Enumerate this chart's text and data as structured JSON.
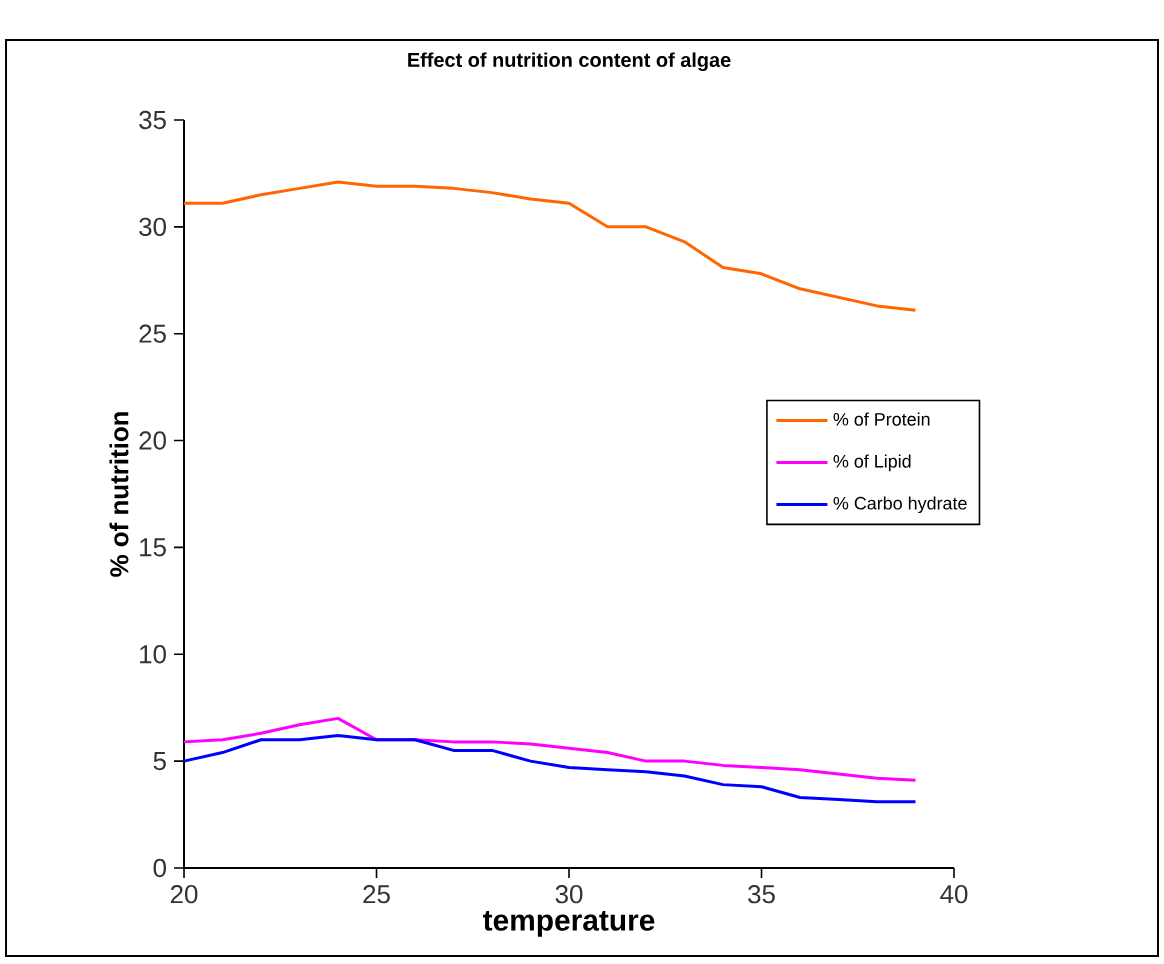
{
  "chart_data": {
    "type": "line",
    "title": "Effect of nutrition content of algae",
    "xlabel": "temperature",
    "ylabel": "% of nutrition",
    "x": [
      20,
      21,
      22,
      23,
      24,
      25,
      26,
      27,
      28,
      29,
      30,
      31,
      32,
      33,
      34,
      35,
      36,
      37,
      38,
      39
    ],
    "xlim": [
      20,
      40
    ],
    "xticks": [
      20,
      25,
      30,
      35,
      40
    ],
    "ylim": [
      0,
      35
    ],
    "yticks": [
      0,
      5,
      10,
      15,
      20,
      25,
      30,
      35
    ],
    "grid": false,
    "legend": "right",
    "marker": "none",
    "line_style": "solid",
    "series": [
      {
        "name": "% of Protein",
        "color": "#ff6600",
        "values": [
          31.1,
          31.1,
          31.5,
          31.8,
          32.1,
          31.9,
          31.9,
          31.8,
          31.6,
          31.3,
          31.1,
          30.0,
          30.0,
          29.3,
          28.1,
          27.8,
          27.1,
          26.7,
          26.3,
          26.1
        ]
      },
      {
        "name": "% of Lipid",
        "color": "#ff00ff",
        "values": [
          5.9,
          6.0,
          6.3,
          6.7,
          7.0,
          6.0,
          6.0,
          5.9,
          5.9,
          5.8,
          5.6,
          5.4,
          5.0,
          5.0,
          4.8,
          4.7,
          4.6,
          4.4,
          4.2,
          4.1
        ]
      },
      {
        "name": "% Carbo hydrate",
        "color": "#0000ff",
        "values": [
          5.0,
          5.4,
          6.0,
          6.0,
          6.2,
          6.0,
          6.0,
          5.5,
          5.5,
          5.0,
          4.7,
          4.6,
          4.5,
          4.3,
          3.9,
          3.8,
          3.3,
          3.2,
          3.1,
          3.1
        ]
      }
    ]
  }
}
